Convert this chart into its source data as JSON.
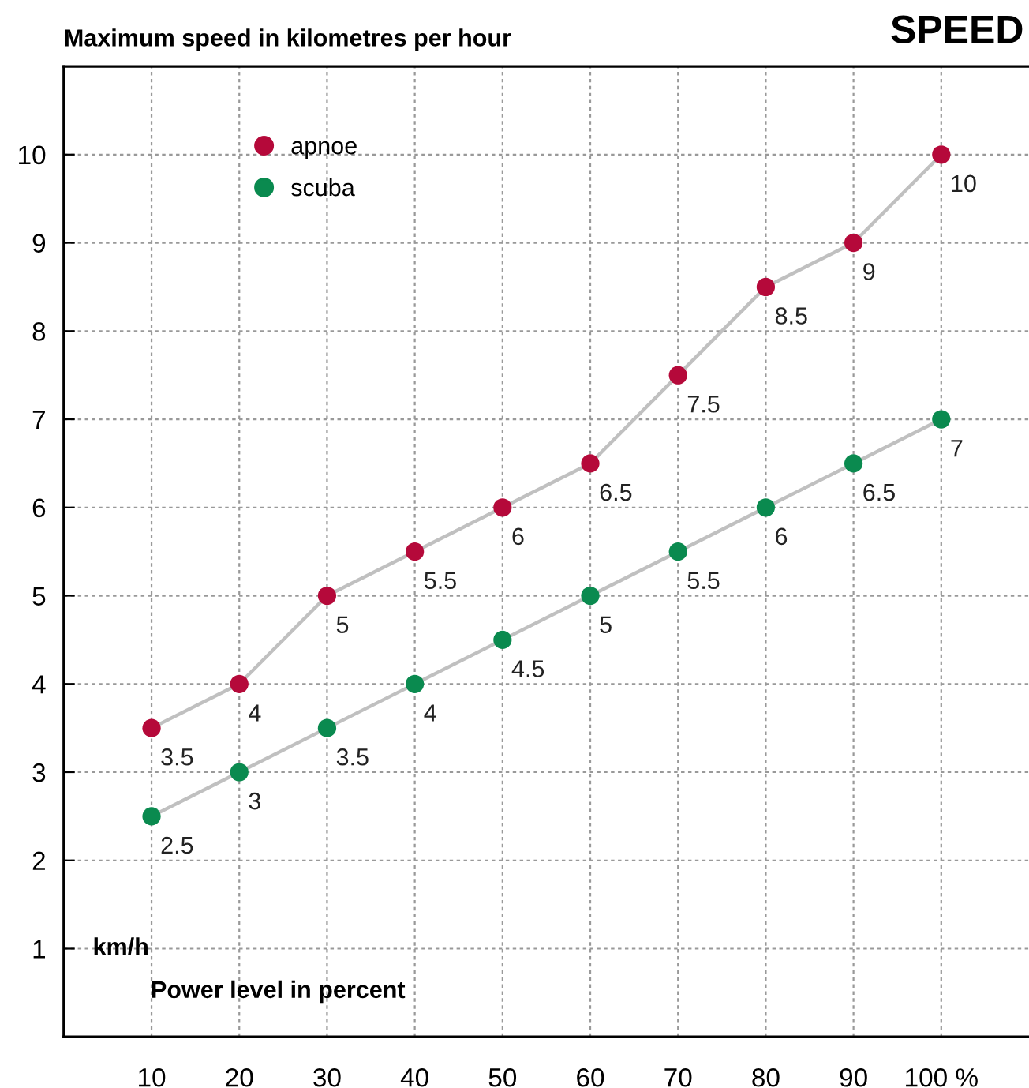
{
  "chart_data": {
    "type": "line",
    "title": "SPEED",
    "ylabel": "Maximum speed in kilometres per hour",
    "xlabel": "Power level in percent",
    "annotations": [
      "km/h"
    ],
    "x": [
      10,
      20,
      30,
      40,
      50,
      60,
      70,
      80,
      90,
      100
    ],
    "series": [
      {
        "name": "apnoe",
        "color": "#b5093a",
        "values": [
          3.5,
          4,
          5,
          5.5,
          6,
          6.5,
          7.5,
          8.5,
          9,
          10
        ]
      },
      {
        "name": "scuba",
        "color": "#0a8a4f",
        "values": [
          2.5,
          3,
          3.5,
          4,
          4.5,
          5,
          5.5,
          6,
          6.5,
          7
        ]
      }
    ],
    "xlim": [
      0,
      110
    ],
    "xticks": [
      10,
      20,
      30,
      40,
      50,
      60,
      70,
      80,
      90,
      {
        "value": 100,
        "label": "100 %"
      }
    ],
    "ylim": [
      0,
      11
    ],
    "yticks": [
      1,
      2,
      3,
      4,
      5,
      6,
      7,
      8,
      9,
      10
    ],
    "grid": true,
    "legend": "top left",
    "marker": "circle",
    "line_style": "solid",
    "data_labels": true
  }
}
